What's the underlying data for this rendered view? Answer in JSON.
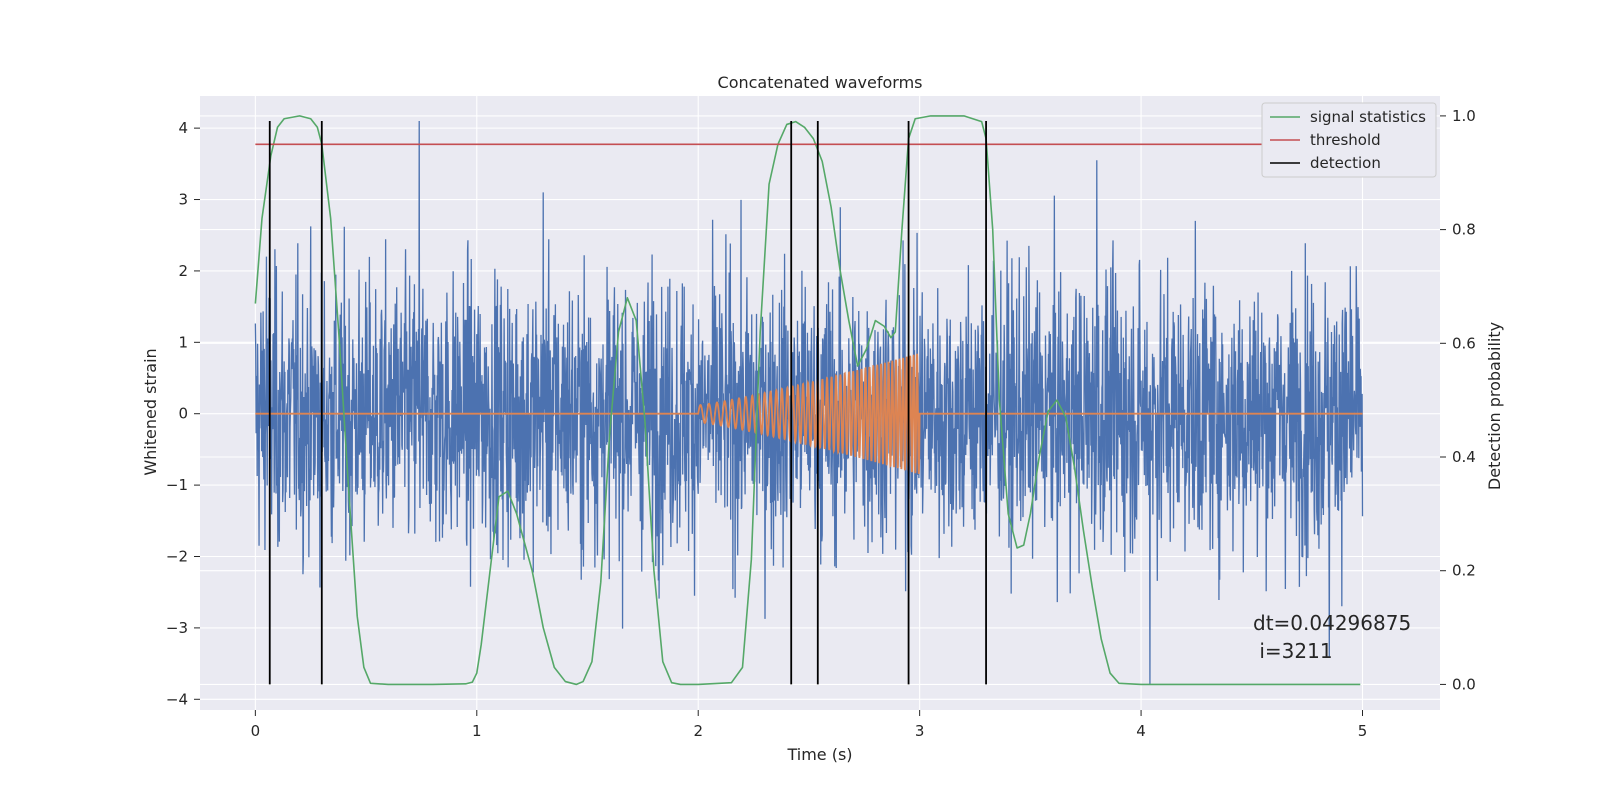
{
  "chart_data": {
    "type": "line",
    "title": "Concatenated waveforms",
    "xlabel": "Time (s)",
    "ylabel": "Whitened strain",
    "y2label": "Detection probability",
    "xlim": [
      -0.25,
      5.35
    ],
    "ylim": [
      -4.15,
      4.45
    ],
    "y2lim": [
      -0.045,
      1.035
    ],
    "xticks": [
      0,
      1,
      2,
      3,
      4,
      5
    ],
    "xtick_labels": [
      "0",
      "1",
      "2",
      "3",
      "4",
      "5"
    ],
    "yticks": [
      4,
      3,
      2,
      1,
      0,
      -1,
      -2,
      -3,
      -4
    ],
    "ytick_labels": [
      "4",
      "3",
      "2",
      "1",
      "0",
      "−1",
      "−2",
      "−3",
      "−4"
    ],
    "y2ticks": [
      1.0,
      0.8,
      0.6,
      0.4,
      0.2,
      0.0
    ],
    "y2tick_labels": [
      "1.0",
      "0.8",
      "0.6",
      "0.4",
      "0.2",
      "0.0"
    ],
    "grid": true,
    "legend_position": "top-right",
    "colors": {
      "strain": "#4c72b0",
      "template": "#dd8452",
      "signal_statistics": "#55a868",
      "threshold": "#c44e52",
      "detection": "#000000",
      "plot_bg": "#eaeaf2",
      "grid": "#ffffff"
    },
    "legend": [
      "signal statistics",
      "threshold",
      "detection"
    ],
    "strain": {
      "x_range": [
        0,
        5
      ],
      "std": 0.95,
      "peaks": [
        {
          "x": 0.74,
          "y": 4.1
        },
        {
          "x": 2.42,
          "y": -3.55
        },
        {
          "x": 4.04,
          "y": -3.8
        },
        {
          "x": 3.8,
          "y": 3.55
        },
        {
          "x": 0.05,
          "y": 2.2
        },
        {
          "x": 1.3,
          "y": 3.1
        },
        {
          "x": 4.85,
          "y": -3.4
        }
      ]
    },
    "template": {
      "start": 2.0,
      "end": 3.0,
      "amp_start": 0.12,
      "amp_end": 0.85,
      "cycles": 45
    },
    "signal_statistics": {
      "x": [
        0,
        0.03,
        0.07,
        0.1,
        0.13,
        0.2,
        0.25,
        0.28,
        0.3,
        0.34,
        0.38,
        0.42,
        0.46,
        0.49,
        0.52,
        0.6,
        0.8,
        0.95,
        0.98,
        1.0,
        1.02,
        1.06,
        1.1,
        1.14,
        1.18,
        1.25,
        1.3,
        1.35,
        1.4,
        1.45,
        1.48,
        1.52,
        1.56,
        1.6,
        1.64,
        1.68,
        1.72,
        1.76,
        1.8,
        1.84,
        1.88,
        1.92,
        2.0,
        2.15,
        2.2,
        2.24,
        2.28,
        2.32,
        2.36,
        2.4,
        2.44,
        2.48,
        2.52,
        2.56,
        2.6,
        2.64,
        2.68,
        2.72,
        2.76,
        2.8,
        2.84,
        2.87,
        2.89,
        2.92,
        2.95,
        2.98,
        3.05,
        3.2,
        3.28,
        3.3,
        3.33,
        3.36,
        3.4,
        3.44,
        3.47,
        3.5,
        3.54,
        3.58,
        3.62,
        3.66,
        3.7,
        3.74,
        3.78,
        3.82,
        3.86,
        3.9,
        4.0,
        4.5,
        4.99
      ],
      "y": [
        0.67,
        0.82,
        0.93,
        0.98,
        0.995,
        1.0,
        0.995,
        0.98,
        0.95,
        0.82,
        0.6,
        0.35,
        0.12,
        0.03,
        0.002,
        0.0,
        0.0,
        0.001,
        0.004,
        0.02,
        0.07,
        0.2,
        0.33,
        0.34,
        0.3,
        0.2,
        0.1,
        0.03,
        0.005,
        0.0,
        0.005,
        0.04,
        0.18,
        0.44,
        0.62,
        0.68,
        0.64,
        0.46,
        0.2,
        0.04,
        0.003,
        0.0,
        0.0,
        0.003,
        0.03,
        0.22,
        0.62,
        0.88,
        0.95,
        0.985,
        0.99,
        0.98,
        0.96,
        0.92,
        0.84,
        0.73,
        0.64,
        0.56,
        0.59,
        0.64,
        0.63,
        0.61,
        0.62,
        0.8,
        0.96,
        0.995,
        1.0,
        1.0,
        0.99,
        0.96,
        0.8,
        0.5,
        0.3,
        0.24,
        0.245,
        0.3,
        0.4,
        0.48,
        0.5,
        0.47,
        0.38,
        0.27,
        0.17,
        0.08,
        0.02,
        0.002,
        0.0,
        0.0,
        0.0
      ]
    },
    "threshold": {
      "value": 0.95,
      "x_range": [
        0,
        5
      ]
    },
    "detections": [
      0.065,
      0.3,
      2.42,
      2.54,
      2.95,
      3.3
    ],
    "detection_ymax": 4.1,
    "annotation": {
      "line1": "dt=0.04296875",
      "line2": " i=3211",
      "x": 4.5,
      "y": -3.0
    }
  }
}
